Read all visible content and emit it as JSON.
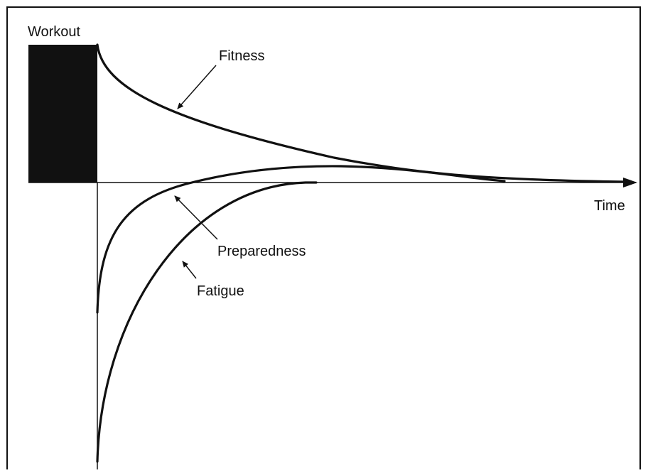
{
  "labels": {
    "workout": "Workout",
    "fitness": "Fitness",
    "time": "Time",
    "preparedness": "Preparedness",
    "fatigue": "Fatigue"
  }
}
